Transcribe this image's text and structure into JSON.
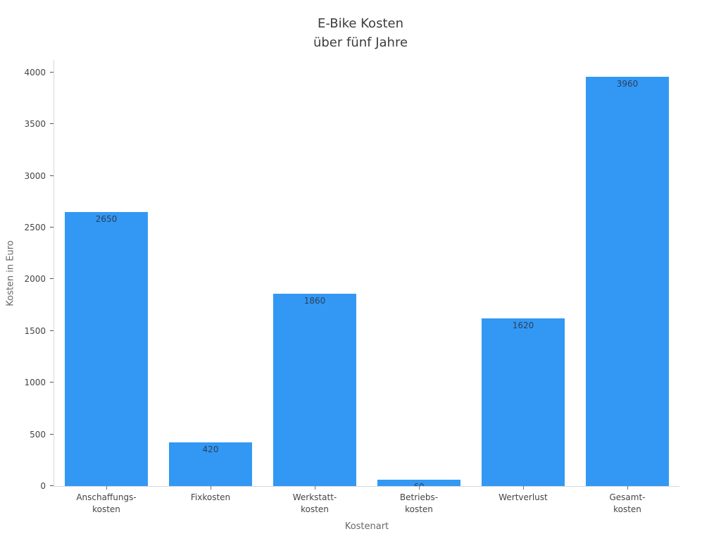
{
  "chart_data": {
    "type": "bar",
    "title": "E-Bike Kosten über fünf Jahre",
    "title_lines": [
      "E-Bike Kosten",
      "über fünf Jahre"
    ],
    "categories": [
      "Anschaffungs-\nkosten",
      "Fixkosten",
      "Werkstatt-\nkosten",
      "Betriebs-\nkosten",
      "Wertverlust",
      "Gesamt-\nkosten"
    ],
    "values": [
      2650,
      420,
      1860,
      60,
      1620,
      3960
    ],
    "value_labels": [
      "2650",
      "420",
      "1860",
      "60",
      "1620",
      "3960"
    ],
    "xlabel": "Kostenart",
    "ylabel": "Kosten in Euro",
    "ylim": [
      0,
      4121
    ],
    "yticks": [
      0,
      500,
      1000,
      1500,
      2000,
      2500,
      3000,
      3500,
      4000
    ],
    "grid": false,
    "legend": "none",
    "bar_color": "#3398f3",
    "value_label_color": "#2a3f5f",
    "axis_line_color": "#d9d9d9",
    "tick_label_color": "#444444",
    "title_color": "#3d3d3d",
    "axis_title_color": "#696969"
  }
}
